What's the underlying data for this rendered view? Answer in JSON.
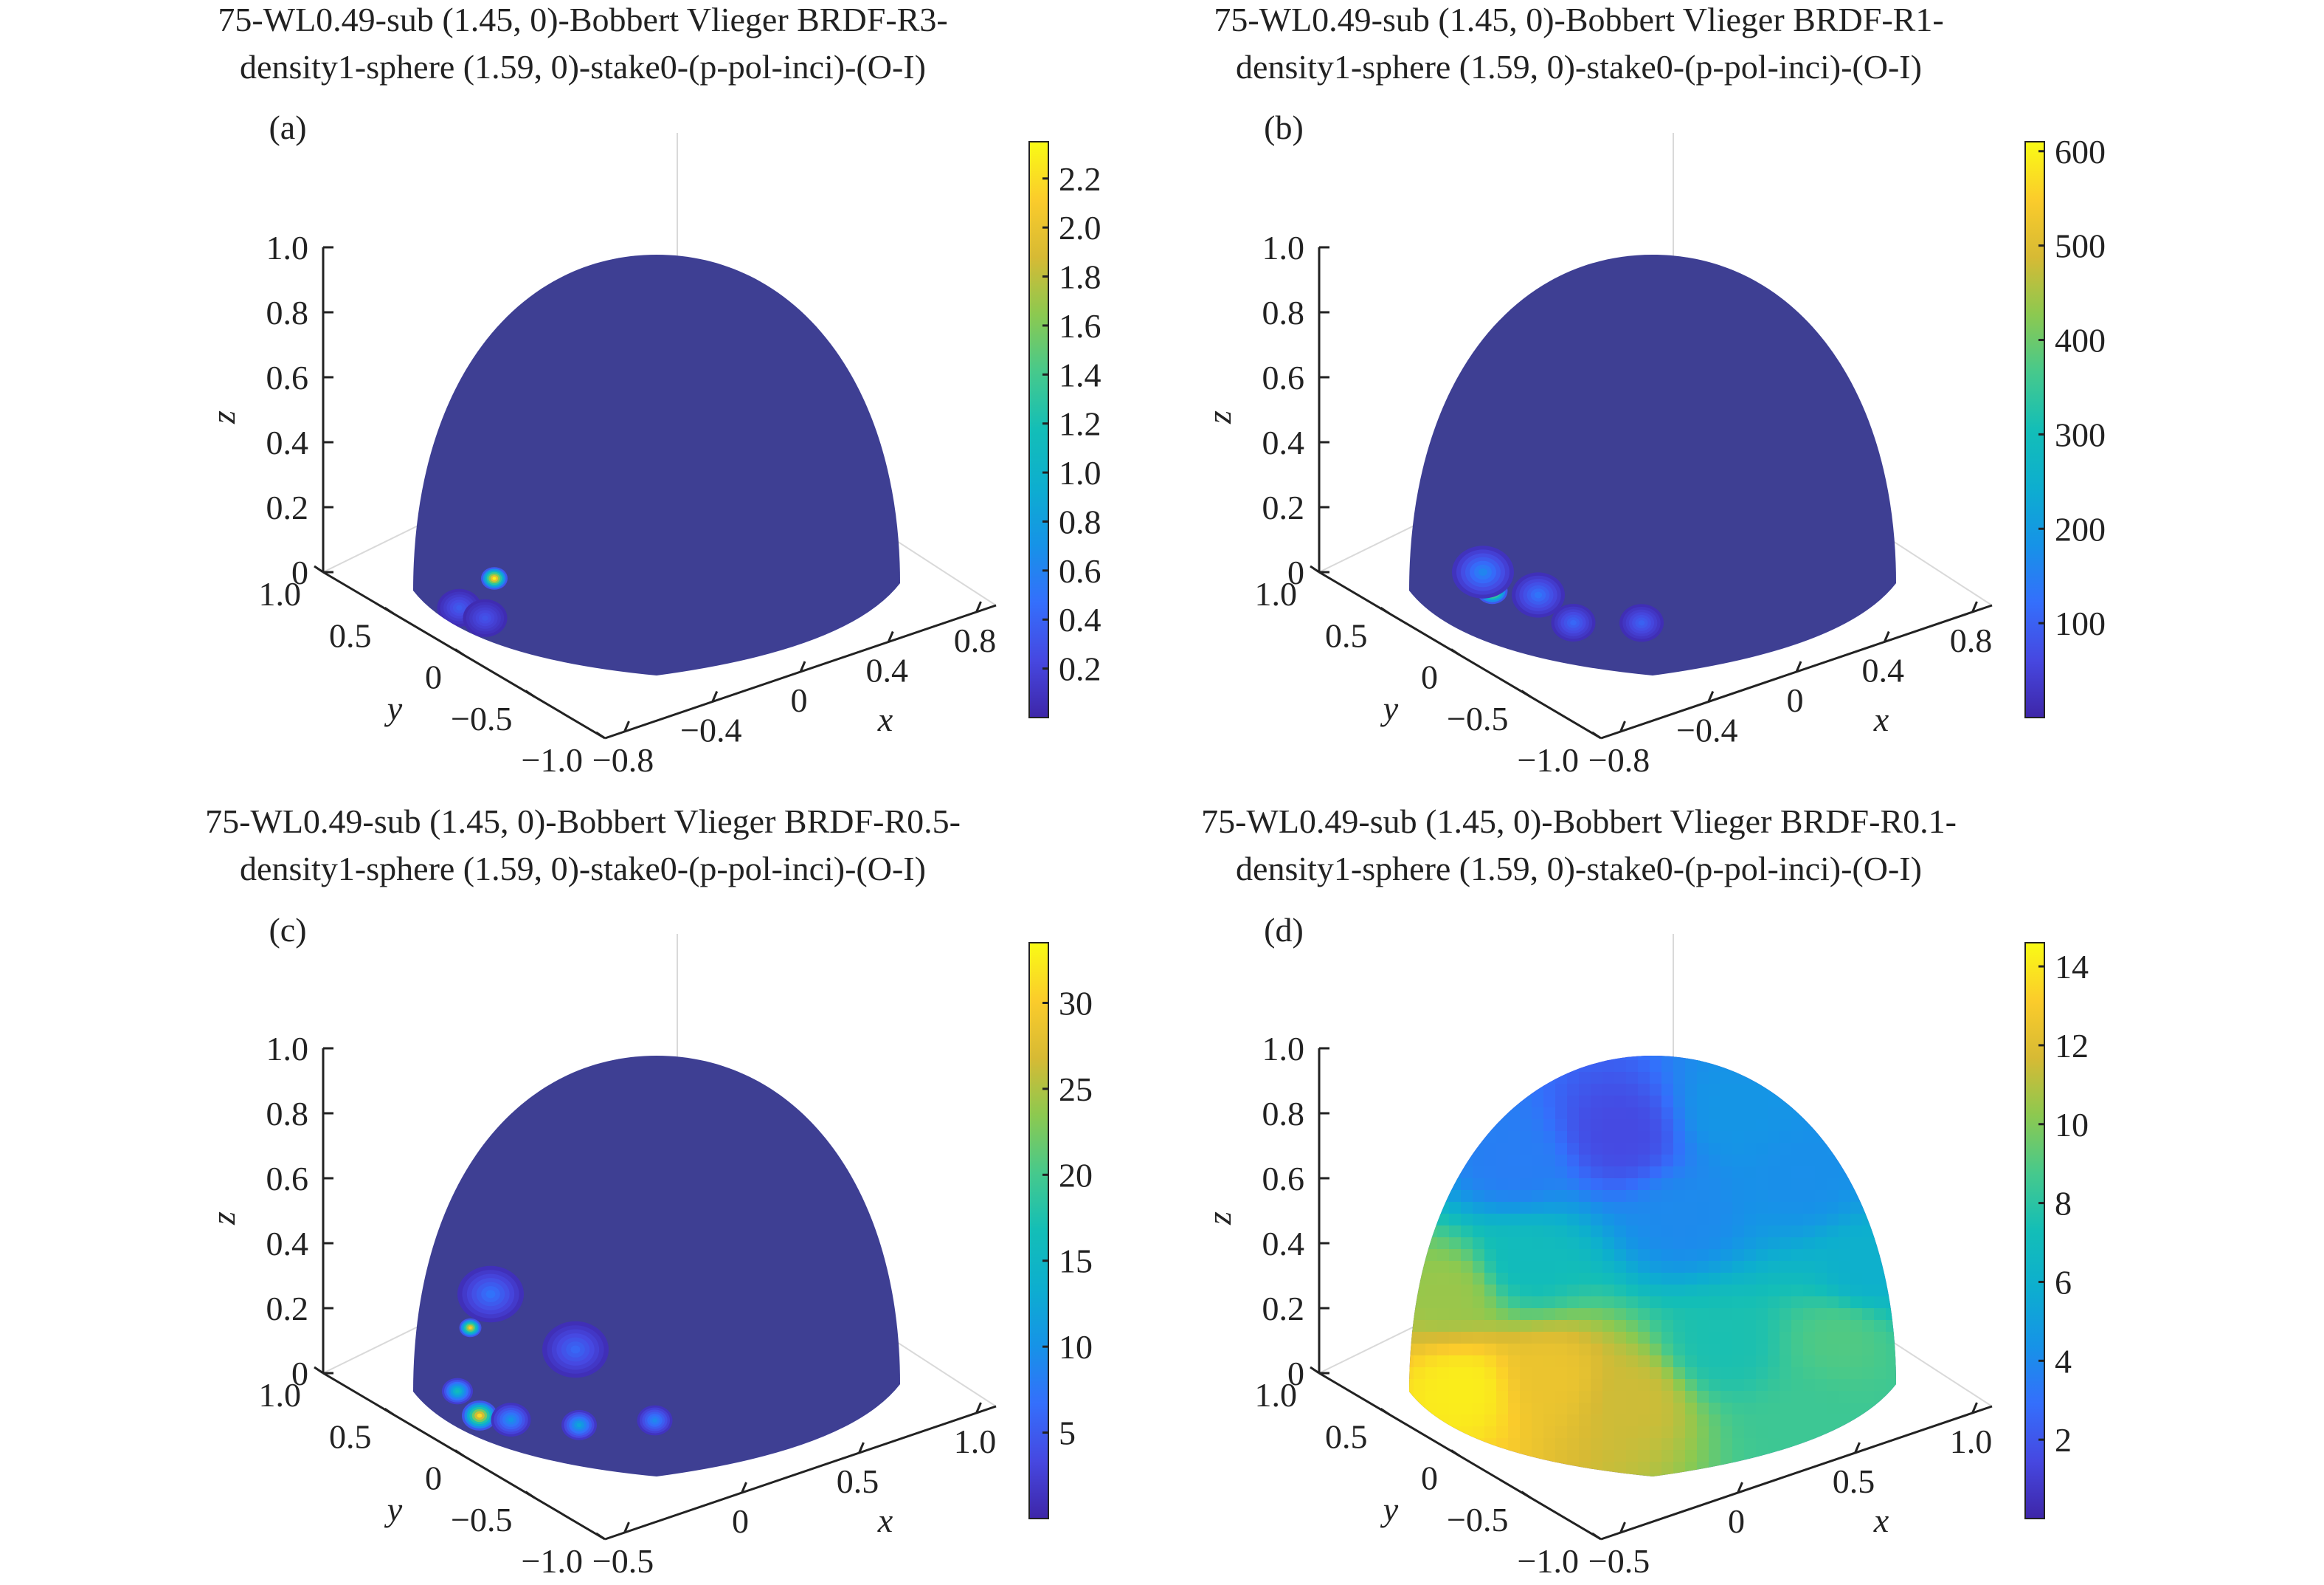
{
  "figure": {
    "panels": [
      {
        "label": "(a)",
        "title_line1": "75-WL0.49-sub (1.45, 0)-Bobbert  Vlieger BRDF-R3-",
        "title_line2": "density1-sphere (1.59, 0)-stake0-(p-pol-inci)-(O-I)"
      },
      {
        "label": "(b)",
        "title_line1": "75-WL0.49-sub (1.45, 0)-Bobbert  Vlieger BRDF-R1-",
        "title_line2": "density1-sphere (1.59, 0)-stake0-(p-pol-inci)-(O-I)"
      },
      {
        "label": "(c)",
        "title_line1": "75-WL0.49-sub (1.45, 0)-Bobbert  Vlieger BRDF-R0.5-",
        "title_line2": "density1-sphere (1.59, 0)-stake0-(p-pol-inci)-(O-I)"
      },
      {
        "label": "(d)",
        "title_line1": "75-WL0.49-sub (1.45, 0)-Bobbert  Vlieger BRDF-R0.1-",
        "title_line2": "density1-sphere (1.59, 0)-stake0-(p-pol-inci)-(O-I)"
      }
    ]
  },
  "chart_data": [
    {
      "type": "heatmap",
      "subtype": "hemisphere-surface",
      "title": "75-WL0.49-sub (1.45, 0)-Bobbert  Vlieger BRDF-R3- density1-sphere (1.59, 0)-stake0-(p-pol-inci)-(O-I)",
      "panel": "(a)",
      "xlabel": "x",
      "ylabel": "y",
      "zlabel": "z",
      "x_ticks": [
        "−0.8",
        "−0.4",
        "0",
        "0.4",
        "0.8"
      ],
      "y_ticks": [
        "1.0",
        "0.5",
        "0",
        "−0.5",
        "−1.0"
      ],
      "z_ticks": [
        "0",
        "0.2",
        "0.4",
        "0.6",
        "0.8",
        "1.0"
      ],
      "colorbar": {
        "colormap": "parula",
        "min": 0,
        "max": 2.35,
        "ticks": [
          "0.2",
          "0.4",
          "0.6",
          "0.8",
          "1.0",
          "1.2",
          "1.4",
          "1.6",
          "1.8",
          "2.0",
          "2.2"
        ]
      },
      "background_color": "#3e3f93",
      "hotspots": [
        {
          "x": -0.55,
          "y": 0.55,
          "z": 0.1,
          "value": 2.3,
          "width": 0.06
        },
        {
          "x": -0.65,
          "y": 0.7,
          "z": 0.03,
          "value": 0.35,
          "width": 0.1
        },
        {
          "x": -0.45,
          "y": 0.8,
          "z": 0.03,
          "value": 0.3,
          "width": 0.1
        }
      ],
      "grid": true
    },
    {
      "type": "heatmap",
      "subtype": "hemisphere-surface",
      "title": "75-WL0.49-sub (1.45, 0)-Bobbert  Vlieger BRDF-R1- density1-sphere (1.59, 0)-stake0-(p-pol-inci)-(O-I)",
      "panel": "(b)",
      "xlabel": "x",
      "ylabel": "y",
      "zlabel": "z",
      "x_ticks": [
        "−0.8",
        "−0.4",
        "0",
        "0.4",
        "0.8"
      ],
      "y_ticks": [
        "1.0",
        "0.5",
        "0",
        "−0.5",
        "−1.0"
      ],
      "z_ticks": [
        "0",
        "0.2",
        "0.4",
        "0.6",
        "0.8",
        "1.0"
      ],
      "colorbar": {
        "colormap": "parula",
        "min": 0,
        "max": 610,
        "ticks": [
          "100",
          "200",
          "300",
          "400",
          "500",
          "600"
        ]
      },
      "background_color": "#3e3f93",
      "hotspots": [
        {
          "x": -0.6,
          "y": 0.45,
          "z": 0.04,
          "value": 600,
          "width": 0.07
        },
        {
          "x": -0.5,
          "y": 0.7,
          "z": 0.15,
          "value": 160,
          "width": 0.14
        },
        {
          "x": -0.2,
          "y": 0.7,
          "z": 0.1,
          "value": 130,
          "width": 0.12
        },
        {
          "x": 0.05,
          "y": 0.8,
          "z": 0.05,
          "value": 110,
          "width": 0.1
        },
        {
          "x": 0.3,
          "y": 0.6,
          "z": 0.03,
          "value": 100,
          "width": 0.1
        }
      ],
      "grid": true
    },
    {
      "type": "heatmap",
      "subtype": "hemisphere-surface",
      "title": "75-WL0.49-sub (1.45, 0)-Bobbert  Vlieger BRDF-R0.5- density1-sphere (1.59, 0)-stake0-(p-pol-inci)-(O-I)",
      "panel": "(c)",
      "xlabel": "x",
      "ylabel": "y",
      "zlabel": "z",
      "x_ticks": [
        "−0.5",
        "0",
        "0.5",
        "1.0"
      ],
      "y_ticks": [
        "1.0",
        "0.5",
        "0",
        "−0.5",
        "−1.0"
      ],
      "z_ticks": [
        "0",
        "0.2",
        "0.4",
        "0.6",
        "0.8",
        "1.0"
      ],
      "colorbar": {
        "colormap": "parula",
        "min": 0,
        "max": 33.5,
        "ticks": [
          "5",
          "10",
          "15",
          "20",
          "25",
          "30"
        ]
      },
      "background_color": "#3e3f93",
      "hotspots": [
        {
          "x": -0.95,
          "y": 0.1,
          "z": 0.15,
          "value": 30,
          "width": 0.05
        },
        {
          "x": -0.75,
          "y": 0.55,
          "z": 0.05,
          "value": 16,
          "width": 0.07
        },
        {
          "x": -0.45,
          "y": 0.85,
          "z": 0.05,
          "value": 31,
          "width": 0.08
        },
        {
          "x": -0.25,
          "y": 0.9,
          "z": 0.06,
          "value": 10,
          "width": 0.09
        },
        {
          "x": 0.15,
          "y": 0.95,
          "z": 0.08,
          "value": 12,
          "width": 0.08
        },
        {
          "x": 0.5,
          "y": 0.85,
          "z": 0.1,
          "value": 9,
          "width": 0.08
        },
        {
          "x": -0.6,
          "y": 0.5,
          "z": 0.35,
          "value": 7,
          "width": 0.15
        },
        {
          "x": 0.1,
          "y": 0.9,
          "z": 0.3,
          "value": 6,
          "width": 0.15
        }
      ],
      "grid": true
    },
    {
      "type": "heatmap",
      "subtype": "hemisphere-surface",
      "title": "75-WL0.49-sub (1.45, 0)-Bobbert  Vlieger BRDF-R0.1- density1-sphere (1.59, 0)-stake0-(p-pol-inci)-(O-I)",
      "panel": "(d)",
      "xlabel": "x",
      "ylabel": "y",
      "zlabel": "z",
      "x_ticks": [
        "−0.5",
        "0",
        "0.5",
        "1.0"
      ],
      "y_ticks": [
        "1.0",
        "0.5",
        "0",
        "−0.5",
        "−1.0"
      ],
      "z_ticks": [
        "0",
        "0.2",
        "0.4",
        "0.6",
        "0.8",
        "1.0"
      ],
      "colorbar": {
        "colormap": "parula",
        "min": 0,
        "max": 14.6,
        "ticks": [
          "2",
          "4",
          "6",
          "8",
          "10",
          "12",
          "14"
        ]
      },
      "field": "smooth band: peak ≈14 near the lower-left of the visible hemisphere, ≈2 near the upper-left crown, ≈5 at top right, ≈7–9 along the right edge",
      "smooth_points": [
        {
          "u": -0.8,
          "v": -0.55,
          "value": 14.2
        },
        {
          "u": -0.45,
          "v": -0.5,
          "value": 12.5
        },
        {
          "u": -0.1,
          "v": -0.6,
          "value": 11.5
        },
        {
          "u": 0.25,
          "v": -0.35,
          "value": 7.5
        },
        {
          "u": 0.75,
          "v": -0.3,
          "value": 9.0
        },
        {
          "u": 0.85,
          "v": 0.0,
          "value": 6.0
        },
        {
          "u": 0.6,
          "v": -0.75,
          "value": 8.5
        },
        {
          "u": -0.85,
          "v": -0.1,
          "value": 10.5
        },
        {
          "u": -0.55,
          "v": 0.05,
          "value": 7.0
        },
        {
          "u": -0.15,
          "v": 0.65,
          "value": 1.5
        },
        {
          "u": 0.3,
          "v": 0.75,
          "value": 4.5
        },
        {
          "u": 0.1,
          "v": 0.25,
          "value": 4.0
        },
        {
          "u": 0.6,
          "v": 0.45,
          "value": 4.2
        },
        {
          "u": -0.6,
          "v": 0.5,
          "value": 3.5
        }
      ],
      "grid": true
    }
  ]
}
